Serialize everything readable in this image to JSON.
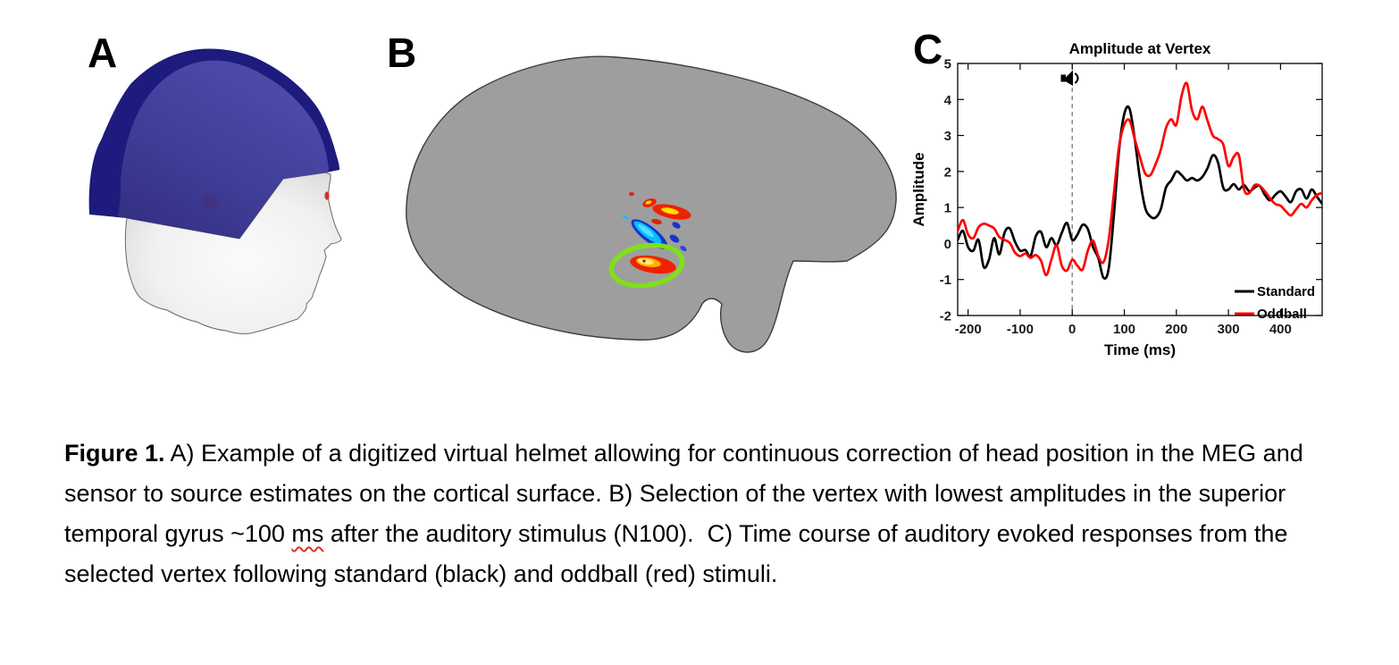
{
  "panels": {
    "a": "A",
    "b": "B",
    "c": "C"
  },
  "caption": {
    "segments": [
      {
        "text": "Figure 1.",
        "bold": true
      },
      {
        "text": " A) Example of a digitized virtual helmet allowing for continuous correction of head position in the MEG and sensor to source estimates on the cortical surface. B) Selection of the vertex with lowest amplitudes in the superior temporal gyrus ~100 "
      },
      {
        "text": "ms",
        "wavy": true
      },
      {
        "text": " after the auditory stimulus (N100).  C) Time course of auditory evoked responses from the selected vertex following standard (black) and oddball (red) stimuli."
      }
    ]
  },
  "colors": {
    "standard_trace": "#000000",
    "oddball_trace": "#ff0000",
    "event_line_gray": "#8a8a8a",
    "helmet_blue": "#413e9a",
    "helmet_rim_blue": "#1d1b7e",
    "selection_circle_green": "#7fe01a",
    "activation_hot": "#ee2200",
    "activation_hot_core": "#ffe000",
    "activation_cool": "#00c0ff",
    "activation_cool_edge": "#1634cc",
    "brain_gyri_gray": "#aeaeae",
    "brain_sulci_gray": "#6b6b6b"
  },
  "chart_data": {
    "type": "line",
    "title": "Amplitude at Vertex",
    "xlabel": "Time (ms)",
    "ylabel": "Amplitude",
    "xlim": [
      -220,
      480
    ],
    "ylim": [
      -2,
      5
    ],
    "xticks": [
      -200,
      -100,
      0,
      100,
      200,
      300,
      400
    ],
    "yticks": [
      -2,
      -1,
      0,
      1,
      2,
      3,
      4,
      5
    ],
    "grid": false,
    "legend_position": "lower right",
    "event_marker": {
      "time": 0,
      "style": "dashed",
      "icon": "speaker"
    },
    "x": [
      -220,
      -210,
      -200,
      -190,
      -180,
      -170,
      -160,
      -150,
      -140,
      -130,
      -120,
      -110,
      -100,
      -90,
      -80,
      -70,
      -60,
      -50,
      -40,
      -30,
      -20,
      -10,
      0,
      10,
      20,
      30,
      40,
      50,
      60,
      70,
      80,
      90,
      100,
      110,
      120,
      130,
      140,
      150,
      160,
      170,
      180,
      190,
      200,
      210,
      220,
      230,
      240,
      250,
      260,
      270,
      280,
      290,
      300,
      310,
      320,
      330,
      340,
      350,
      360,
      370,
      380,
      390,
      400,
      410,
      420,
      430,
      440,
      450,
      460,
      470,
      480
    ],
    "series": [
      {
        "name": "Standard",
        "color": "#000000",
        "values": [
          0.1,
          0.35,
          -0.1,
          -0.2,
          0.1,
          -0.65,
          -0.45,
          0.15,
          -0.3,
          0.3,
          0.42,
          0.05,
          -0.2,
          -0.18,
          -0.35,
          0.2,
          0.32,
          -0.1,
          0.15,
          -0.05,
          0.3,
          0.57,
          0.1,
          0.25,
          0.52,
          0.4,
          -0.1,
          -0.4,
          -0.95,
          -0.7,
          0.8,
          2.6,
          3.6,
          3.75,
          2.9,
          1.8,
          1.0,
          0.75,
          0.72,
          0.95,
          1.55,
          1.75,
          2.0,
          1.9,
          1.75,
          1.82,
          1.75,
          1.85,
          2.1,
          2.45,
          2.25,
          1.55,
          1.5,
          1.65,
          1.5,
          1.62,
          1.45,
          1.55,
          1.6,
          1.35,
          1.2,
          1.35,
          1.45,
          1.3,
          1.15,
          1.45,
          1.5,
          1.25,
          1.5,
          1.3,
          1.1
        ]
      },
      {
        "name": "Oddball",
        "color": "#ff0000",
        "values": [
          0.35,
          0.65,
          0.25,
          0.15,
          0.45,
          0.55,
          0.5,
          0.42,
          0.18,
          0.1,
          0.02,
          -0.25,
          -0.35,
          -0.28,
          -0.4,
          -0.32,
          -0.48,
          -0.88,
          -0.45,
          -0.05,
          -0.62,
          -0.75,
          -0.45,
          -0.62,
          -0.72,
          -0.2,
          0.08,
          -0.35,
          -0.52,
          0.1,
          1.4,
          2.7,
          3.3,
          3.42,
          2.9,
          2.4,
          1.95,
          1.9,
          2.2,
          2.6,
          3.2,
          3.45,
          3.3,
          4.1,
          4.45,
          3.7,
          3.45,
          3.8,
          3.4,
          3.0,
          2.9,
          2.75,
          2.15,
          2.4,
          2.45,
          1.5,
          1.4,
          1.62,
          1.6,
          1.45,
          1.25,
          1.1,
          1.05,
          0.9,
          0.78,
          0.95,
          1.1,
          1.0,
          1.2,
          1.35,
          1.4
        ]
      }
    ]
  }
}
